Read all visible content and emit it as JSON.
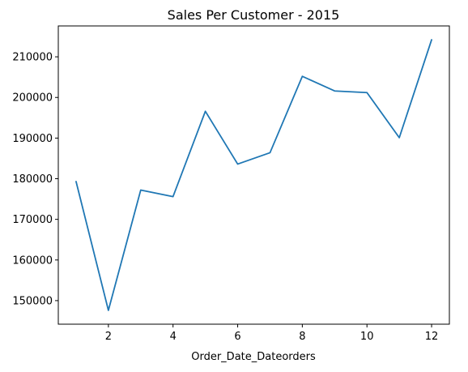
{
  "chart_data": {
    "type": "line",
    "title": "Sales Per Customer - 2015",
    "xlabel": "Order_Date_Dateorders",
    "ylabel": "",
    "xlim": [
      0.45,
      12.55
    ],
    "ylim": [
      144200,
      217600
    ],
    "x_ticks": [
      2,
      4,
      6,
      8,
      10,
      12
    ],
    "y_ticks": [
      150000,
      160000,
      170000,
      180000,
      190000,
      200000,
      210000
    ],
    "grid": false,
    "legend": "none",
    "series": [
      {
        "color": "#1f77b4",
        "x": [
          1,
          2,
          3,
          4,
          5,
          6,
          7,
          8,
          9,
          10,
          11,
          12
        ],
        "y": [
          179300,
          147600,
          177200,
          175600,
          196600,
          183600,
          186400,
          205200,
          201600,
          201200,
          190100,
          214200
        ]
      }
    ]
  }
}
